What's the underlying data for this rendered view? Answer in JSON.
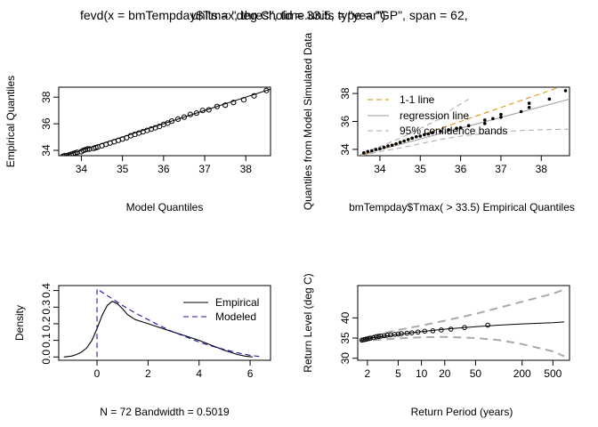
{
  "figure": {
    "title_part1": "fevd(x = bmTempday$Tmax, threshold = 33.5, type = \"GP\", span = 62,",
    "title_part2": "units = \"deg C\", time.units = \"year\")"
  },
  "chart_data": [
    {
      "type": "scatter",
      "panel": "qq",
      "xlabel": "Model Quantiles",
      "ylabel": "Empirical Quantiles",
      "xlim": [
        33.45,
        38.6
      ],
      "ylim": [
        33.6,
        38.75
      ],
      "xticks": [
        34,
        35,
        36,
        37,
        38
      ],
      "yticks": [
        34,
        36,
        38
      ],
      "reference_line": [
        [
          33.45,
          33.45
        ],
        [
          38.6,
          38.6
        ]
      ],
      "points": [
        [
          33.55,
          33.55
        ],
        [
          33.6,
          33.6
        ],
        [
          33.65,
          33.6
        ],
        [
          33.7,
          33.65
        ],
        [
          33.75,
          33.7
        ],
        [
          33.8,
          33.75
        ],
        [
          33.85,
          33.8
        ],
        [
          33.9,
          33.85
        ],
        [
          34.0,
          33.9
        ],
        [
          34.05,
          34.0
        ],
        [
          34.1,
          34.05
        ],
        [
          34.15,
          34.1
        ],
        [
          34.2,
          34.1
        ],
        [
          34.3,
          34.15
        ],
        [
          34.35,
          34.2
        ],
        [
          34.4,
          34.25
        ],
        [
          34.5,
          34.35
        ],
        [
          34.6,
          34.45
        ],
        [
          34.7,
          34.55
        ],
        [
          34.8,
          34.65
        ],
        [
          34.9,
          34.75
        ],
        [
          35.0,
          34.85
        ],
        [
          35.1,
          34.95
        ],
        [
          35.2,
          35.1
        ],
        [
          35.3,
          35.2
        ],
        [
          35.4,
          35.3
        ],
        [
          35.5,
          35.4
        ],
        [
          35.6,
          35.5
        ],
        [
          35.7,
          35.6
        ],
        [
          35.8,
          35.7
        ],
        [
          35.9,
          35.8
        ],
        [
          36.0,
          35.95
        ],
        [
          36.1,
          36.05
        ],
        [
          36.2,
          36.2
        ],
        [
          36.35,
          36.35
        ],
        [
          36.5,
          36.5
        ],
        [
          36.65,
          36.7
        ],
        [
          36.8,
          36.8
        ],
        [
          36.95,
          37.0
        ],
        [
          37.1,
          37.05
        ],
        [
          37.3,
          37.3
        ],
        [
          37.5,
          37.4
        ],
        [
          37.7,
          37.6
        ],
        [
          37.95,
          37.8
        ],
        [
          38.2,
          38.1
        ],
        [
          38.5,
          38.5
        ]
      ]
    },
    {
      "type": "scatter",
      "panel": "simulated-qq",
      "xlabel": "bmTempday$Tmax( > 33.5) Empirical Quantiles",
      "ylabel": "Quantiles from Model Simulated Data",
      "xlim": [
        33.45,
        38.7
      ],
      "ylim": [
        33.55,
        38.45
      ],
      "xticks": [
        34,
        35,
        36,
        37,
        38
      ],
      "yticks": [
        34,
        36,
        38
      ],
      "legend": {
        "position": "top-left",
        "entries": [
          "1-1 line",
          "regression line",
          "95% confidence bands"
        ]
      },
      "one_to_one_line": [
        [
          33.45,
          33.45
        ],
        [
          38.7,
          38.7
        ]
      ],
      "regression_line": [
        [
          33.45,
          33.55
        ],
        [
          38.7,
          37.6
        ]
      ],
      "upper_band": [
        [
          33.55,
          33.7
        ],
        [
          34,
          34.2
        ],
        [
          34.5,
          34.8
        ],
        [
          35,
          35.5
        ],
        [
          35.5,
          36.2
        ],
        [
          35.8,
          36.9
        ],
        [
          36.2,
          37.6
        ]
      ],
      "lower_band": [
        [
          33.55,
          33.55
        ],
        [
          34,
          33.85
        ],
        [
          34.5,
          34.1
        ],
        [
          35,
          34.4
        ],
        [
          35.5,
          34.7
        ],
        [
          36,
          34.95
        ],
        [
          36.5,
          35.1
        ],
        [
          37,
          35.25
        ],
        [
          37.5,
          35.35
        ],
        [
          38,
          35.4
        ],
        [
          38.7,
          35.45
        ]
      ],
      "points": [
        [
          33.6,
          33.75
        ],
        [
          33.7,
          33.85
        ],
        [
          33.8,
          33.9
        ],
        [
          33.9,
          34.0
        ],
        [
          34.0,
          34.05
        ],
        [
          34.1,
          34.15
        ],
        [
          34.2,
          34.25
        ],
        [
          34.3,
          34.3
        ],
        [
          34.4,
          34.4
        ],
        [
          34.5,
          34.5
        ],
        [
          34.6,
          34.6
        ],
        [
          34.7,
          34.7
        ],
        [
          34.8,
          34.8
        ],
        [
          34.9,
          34.9
        ],
        [
          35.0,
          34.95
        ],
        [
          35.1,
          35.05
        ],
        [
          35.2,
          35.1
        ],
        [
          35.3,
          35.2
        ],
        [
          35.5,
          35.3
        ],
        [
          35.7,
          35.4
        ],
        [
          35.9,
          35.5
        ],
        [
          36.0,
          35.55
        ],
        [
          36.2,
          35.7
        ],
        [
          36.6,
          35.85
        ],
        [
          36.6,
          36.1
        ],
        [
          36.8,
          36.2
        ],
        [
          37.0,
          36.3
        ],
        [
          37.0,
          36.5
        ],
        [
          37.5,
          36.7
        ],
        [
          37.7,
          37.0
        ],
        [
          37.7,
          37.3
        ],
        [
          38.2,
          37.6
        ],
        [
          38.6,
          38.2
        ]
      ]
    },
    {
      "type": "line",
      "panel": "density",
      "xlabel": "N = 72   Bandwidth = 0.5019",
      "ylabel": "Density",
      "xlim": [
        -1.5,
        6.8
      ],
      "ylim": [
        -0.02,
        0.43
      ],
      "xticks": [
        0,
        2,
        4,
        6
      ],
      "yticks": [
        0.0,
        0.1,
        0.2,
        0.3,
        0.4
      ],
      "legend": {
        "position": "top-right",
        "entries": [
          "Empirical",
          "Modeled"
        ]
      },
      "series": [
        {
          "name": "Empirical",
          "x": [
            -1.3,
            -1.0,
            -0.8,
            -0.6,
            -0.4,
            -0.2,
            0.0,
            0.2,
            0.4,
            0.6,
            0.8,
            1.0,
            1.2,
            1.5,
            2.0,
            2.5,
            3.0,
            3.5,
            4.0,
            4.5,
            5.0,
            5.5,
            5.8,
            6.1
          ],
          "y": [
            0.0,
            0.005,
            0.015,
            0.03,
            0.055,
            0.1,
            0.17,
            0.25,
            0.31,
            0.335,
            0.32,
            0.29,
            0.255,
            0.225,
            0.2,
            0.175,
            0.15,
            0.125,
            0.1,
            0.07,
            0.04,
            0.015,
            0.005,
            0.0
          ]
        },
        {
          "name": "Modeled",
          "x": [
            0.0,
            0.0,
            0.5,
            1.0,
            1.5,
            2.0,
            2.5,
            3.0,
            3.5,
            4.0,
            4.5,
            5.0,
            5.5,
            6.0,
            6.5
          ],
          "y": [
            0.0,
            0.41,
            0.36,
            0.31,
            0.265,
            0.225,
            0.185,
            0.15,
            0.12,
            0.09,
            0.065,
            0.045,
            0.025,
            0.01,
            0.0
          ]
        }
      ]
    },
    {
      "type": "line",
      "panel": "return-level",
      "xlabel": "Return Period (years)",
      "ylabel": "Return Level (deg C)",
      "xscale": "log",
      "xlim": [
        1.5,
        820
      ],
      "ylim": [
        29.5,
        48
      ],
      "xticks": [
        2,
        5,
        10,
        20,
        50,
        200,
        500
      ],
      "yticks": [
        30,
        35,
        40
      ],
      "return_level_curve": {
        "x": [
          1.6,
          2,
          5,
          10,
          20,
          50,
          100,
          200,
          500,
          700
        ],
        "y": [
          34.3,
          34.9,
          35.9,
          36.6,
          37.2,
          37.8,
          38.2,
          38.5,
          38.8,
          39.0
        ]
      },
      "upper_band": {
        "x": [
          1.6,
          2,
          5,
          10,
          20,
          50,
          100,
          200,
          500,
          700
        ],
        "y": [
          34.5,
          35.3,
          37.0,
          38.1,
          39.3,
          41.0,
          42.5,
          44.0,
          46.0,
          47.0
        ]
      },
      "lower_band": {
        "x": [
          1.6,
          2,
          5,
          10,
          20,
          50,
          100,
          200,
          500,
          700
        ],
        "y": [
          34.2,
          34.4,
          34.9,
          35.2,
          35.3,
          35.0,
          34.5,
          33.5,
          31.7,
          30.5
        ]
      },
      "points": [
        [
          1.7,
          34.5
        ],
        [
          1.8,
          34.6
        ],
        [
          1.9,
          34.7
        ],
        [
          2.0,
          34.8
        ],
        [
          2.1,
          34.9
        ],
        [
          2.2,
          35.0
        ],
        [
          2.4,
          35.1
        ],
        [
          2.6,
          35.3
        ],
        [
          2.8,
          35.4
        ],
        [
          3.0,
          35.5
        ],
        [
          3.3,
          35.6
        ],
        [
          3.6,
          35.7
        ],
        [
          4.0,
          35.8
        ],
        [
          4.5,
          35.9
        ],
        [
          5.0,
          36.0
        ],
        [
          5.5,
          36.1
        ],
        [
          6.5,
          36.2
        ],
        [
          7.5,
          36.3
        ],
        [
          9,
          36.5
        ],
        [
          11,
          36.7
        ],
        [
          14,
          36.8
        ],
        [
          18,
          37.0
        ],
        [
          24,
          37.2
        ],
        [
          36,
          37.6
        ],
        [
          72,
          38.2
        ]
      ]
    }
  ]
}
